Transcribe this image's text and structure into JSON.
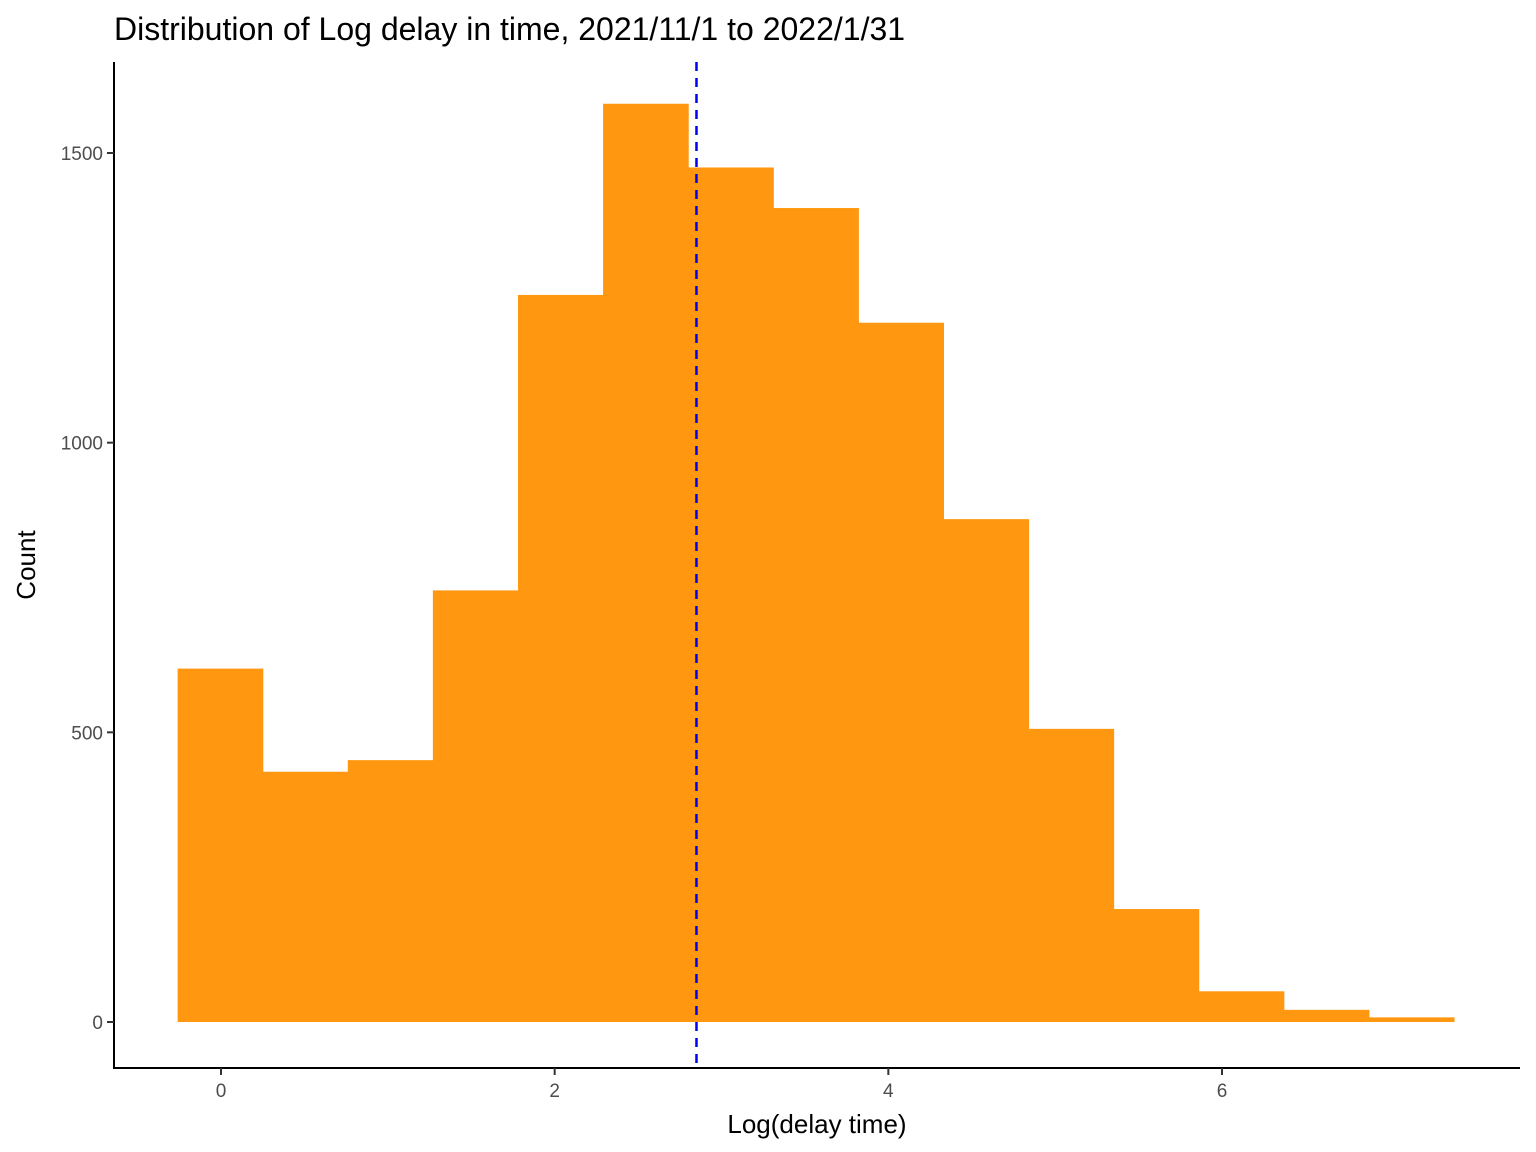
{
  "chart_data": {
    "type": "bar",
    "title": "Distribution of Log delay in time, 2021/11/1 to 2022/1/31",
    "xlabel": "Log(delay time)",
    "ylabel": "Count",
    "xlim": [
      -0.6,
      8.2
    ],
    "ylim": [
      -80,
      1650
    ],
    "x_ticks": [
      0,
      2,
      4,
      6
    ],
    "x_tick_labels": [
      "0",
      "2",
      "4",
      "6"
    ],
    "y_ticks": [
      0,
      500,
      1000,
      1500
    ],
    "y_tick_labels": [
      "0",
      "500",
      "1000",
      "1500"
    ],
    "bin_width": 0.51,
    "bins": [
      {
        "x0": -0.26,
        "x1": 0.25,
        "count": 610
      },
      {
        "x0": 0.25,
        "x1": 0.76,
        "count": 432
      },
      {
        "x0": 0.76,
        "x1": 1.27,
        "count": 452
      },
      {
        "x0": 1.27,
        "x1": 1.78,
        "count": 745
      },
      {
        "x0": 1.78,
        "x1": 2.29,
        "count": 1255
      },
      {
        "x0": 2.29,
        "x1": 2.8,
        "count": 1585
      },
      {
        "x0": 2.8,
        "x1": 3.31,
        "count": 1475
      },
      {
        "x0": 3.31,
        "x1": 3.82,
        "count": 1405
      },
      {
        "x0": 3.82,
        "x1": 4.33,
        "count": 1207
      },
      {
        "x0": 4.33,
        "x1": 4.84,
        "count": 868
      },
      {
        "x0": 4.84,
        "x1": 5.35,
        "count": 506
      },
      {
        "x0": 5.35,
        "x1": 5.86,
        "count": 195
      },
      {
        "x0": 5.86,
        "x1": 6.37,
        "count": 53
      },
      {
        "x0": 6.37,
        "x1": 6.88,
        "count": 21
      },
      {
        "x0": 6.88,
        "x1": 7.39,
        "count": 8
      }
    ],
    "mean_line": 2.85,
    "colors": {
      "bar": "#FF9810",
      "mean_line": "#0000FF",
      "axis": "#000000"
    },
    "grid": false
  }
}
